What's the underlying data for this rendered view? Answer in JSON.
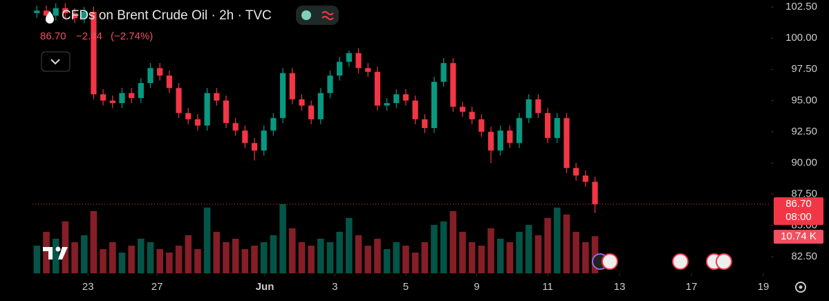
{
  "chart_data": {
    "type": "candlestick",
    "title": "CFDs on Brent Crude Oil · 2h · TVC",
    "last_price": {
      "value": 86.7,
      "label": "86.70"
    },
    "change": {
      "value": -2.44,
      "label": "−2.44"
    },
    "change_pct": {
      "value": -2.74,
      "label": "(−2.74%)"
    },
    "timer": "08:00",
    "last_volume": {
      "value": 10.74,
      "label": "10.74 K"
    },
    "up_color": "#089981",
    "down_color": "#f23645",
    "open": [
      102.0,
      102.2,
      101.8,
      102.4,
      102.0,
      101.6,
      102.1,
      95.5,
      95.0,
      94.8,
      95.6,
      95.2,
      96.4,
      97.6,
      97.0,
      96.0,
      94.0,
      93.5,
      93.0,
      95.6,
      95.0,
      93.2,
      92.6,
      91.6,
      91.0,
      92.6,
      93.6,
      97.2,
      95.1,
      94.6,
      93.5,
      95.6,
      97.0,
      98.1,
      98.8,
      97.6,
      97.3,
      94.6,
      94.8,
      95.5,
      95.0,
      93.5,
      92.8,
      96.5,
      98.0,
      94.5,
      94.1,
      93.5,
      92.5,
      91.0,
      92.6,
      91.6,
      93.6,
      95.1,
      94.0,
      92.0,
      93.6,
      89.6,
      89.0,
      88.5
    ],
    "high": [
      102.6,
      102.6,
      102.8,
      102.8,
      102.4,
      102.5,
      102.5,
      95.9,
      95.4,
      96.0,
      96.0,
      96.8,
      98.0,
      98.0,
      97.4,
      96.4,
      94.4,
      93.9,
      96.0,
      96.0,
      95.4,
      93.6,
      93.0,
      92.0,
      93.0,
      94.0,
      97.6,
      97.6,
      95.5,
      95.0,
      96.0,
      97.4,
      98.5,
      99.0,
      99.2,
      98.0,
      97.7,
      95.2,
      95.9,
      95.9,
      95.4,
      93.9,
      96.9,
      98.4,
      98.4,
      94.9,
      94.5,
      93.9,
      92.9,
      93.0,
      93.0,
      94.0,
      95.5,
      95.5,
      94.4,
      94.0,
      94.0,
      90.0,
      89.4,
      88.9
    ],
    "low": [
      101.6,
      101.4,
      101.4,
      101.6,
      101.2,
      101.2,
      95.1,
      94.6,
      94.4,
      94.4,
      94.8,
      94.8,
      96.0,
      96.6,
      95.6,
      93.6,
      93.1,
      92.6,
      92.6,
      94.6,
      92.8,
      92.2,
      91.2,
      90.2,
      90.6,
      92.2,
      93.2,
      94.7,
      94.2,
      93.1,
      93.1,
      95.2,
      96.6,
      97.7,
      97.2,
      96.9,
      94.2,
      94.2,
      94.4,
      94.6,
      93.1,
      92.4,
      92.4,
      96.1,
      94.1,
      93.7,
      93.1,
      92.1,
      90.0,
      90.6,
      91.2,
      91.2,
      93.2,
      93.6,
      91.6,
      91.6,
      89.2,
      88.6,
      88.1,
      86.0
    ],
    "close": [
      102.2,
      101.8,
      102.4,
      102.0,
      101.6,
      102.1,
      95.5,
      95.0,
      94.8,
      95.6,
      95.2,
      96.4,
      97.6,
      97.0,
      96.0,
      94.0,
      93.5,
      93.0,
      95.6,
      95.0,
      93.2,
      92.6,
      91.6,
      91.0,
      92.6,
      93.6,
      97.2,
      95.1,
      94.6,
      93.5,
      95.6,
      97.0,
      98.1,
      98.8,
      97.6,
      97.3,
      94.6,
      94.8,
      95.5,
      95.0,
      93.5,
      92.8,
      96.5,
      98.0,
      94.5,
      94.1,
      93.5,
      92.5,
      91.0,
      92.6,
      91.6,
      93.6,
      95.1,
      94.0,
      92.0,
      93.6,
      89.6,
      89.0,
      88.5,
      86.7
    ],
    "volume": [
      8,
      12,
      10,
      15,
      9,
      11,
      18,
      7,
      9,
      6,
      8,
      10,
      9,
      7,
      6,
      8,
      11,
      7,
      19,
      12,
      9,
      10,
      7,
      8,
      9,
      11,
      20,
      13,
      9,
      8,
      10,
      9,
      12,
      16,
      11,
      8,
      10,
      7,
      9,
      8,
      6,
      9,
      14,
      15,
      18,
      12,
      9,
      8,
      13,
      10,
      9,
      12,
      14,
      11,
      16,
      19,
      17,
      12,
      9,
      10.74
    ],
    "ylim": [
      81.17,
      103.05
    ],
    "yticks": [
      {
        "value": 102.5,
        "label": "102.50"
      },
      {
        "value": 100,
        "label": "100.00"
      },
      {
        "value": 97.5,
        "label": "97.50"
      },
      {
        "value": 95,
        "label": "95.00"
      },
      {
        "value": 92.5,
        "label": "92.50"
      },
      {
        "value": 90,
        "label": "90.00"
      },
      {
        "value": 87.5,
        "label": "87.50"
      },
      {
        "value": 85,
        "label": "85.00"
      },
      {
        "value": 82.5,
        "label": "82.50"
      }
    ],
    "volume_lim": [
      0,
      40
    ],
    "xlim": [
      -3.9,
      77.6
    ],
    "xticks": [
      {
        "value": 5.4,
        "label": "23"
      },
      {
        "value": 12.7,
        "label": "27"
      },
      {
        "value": 24.1,
        "label": "Jun"
      },
      {
        "value": 31.5,
        "label": "3"
      },
      {
        "value": 39.0,
        "label": "5"
      },
      {
        "value": 46.5,
        "label": "9"
      },
      {
        "value": 54.0,
        "label": "11"
      },
      {
        "value": 61.6,
        "label": "13"
      },
      {
        "value": 69.2,
        "label": "17"
      },
      {
        "value": 76.8,
        "label": "19"
      }
    ]
  }
}
